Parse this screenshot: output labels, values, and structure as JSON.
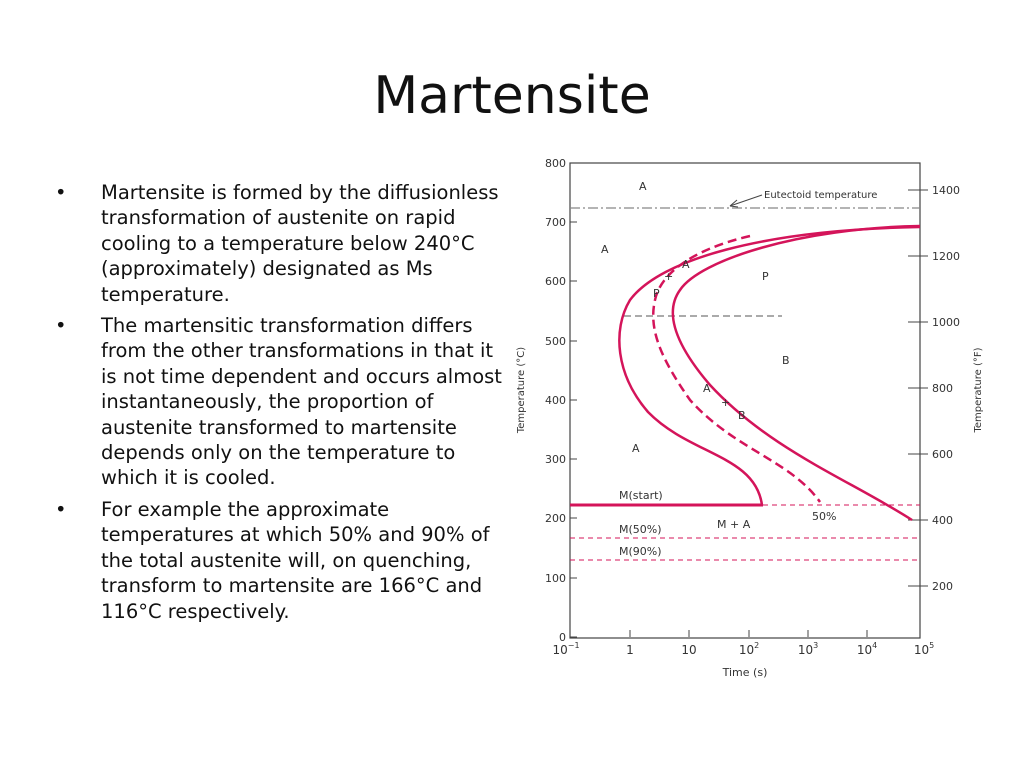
{
  "slide": {
    "title": "Martensite",
    "bullet_symbol": "•",
    "bullets": [
      "Martensite is formed by the diffusionless transformation of austenite on rapid cooling to a temperature below 240°C (approximately) designated as Ms temperature.",
      "The martensitic transformation differs from the other transformations in that it is not time dependent and occurs almost instantaneously, the proportion of austenite transformed to martensite depends only on the temperature to which it is cooled.",
      "For example the approximate temperatures at which 50% and 90% of the total austenite will, on quenching, transform to martensite are 166°C and 116°C respectively."
    ]
  },
  "diagram": {
    "left_axis": {
      "label": "Temperature (°C)",
      "ticks": [
        "0",
        "100",
        "200",
        "300",
        "400",
        "500",
        "600",
        "700",
        "800"
      ]
    },
    "right_axis": {
      "label": "Temperature (°F)",
      "ticks": [
        "200",
        "400",
        "600",
        "800",
        "1000",
        "1200",
        "1400"
      ]
    },
    "x_axis": {
      "label": "Time (s)",
      "ticks": [
        {
          "base": "10",
          "exp": "−1"
        },
        {
          "base": "1",
          "exp": ""
        },
        {
          "base": "10",
          "exp": ""
        },
        {
          "base": "10",
          "exp": "2"
        },
        {
          "base": "10",
          "exp": "3"
        },
        {
          "base": "10",
          "exp": "4"
        },
        {
          "base": "10",
          "exp": "5"
        }
      ]
    },
    "labels": {
      "eutectoid": "Eutectoid temperature",
      "a_top": "A",
      "a_left": "A",
      "a_bottom": "A",
      "a_curve1": "A",
      "plus1": "+",
      "p_curve1": "P",
      "p_region": "P",
      "b_region": "B",
      "a_curve2": "A",
      "plus2": "+",
      "b_curve2": "B",
      "m_start": "M(start)",
      "m_50": "M(50%)",
      "m_90": "M(90%)",
      "m_plus_a": "M + A",
      "pct_50": "50%"
    },
    "colors": {
      "curve": "#d4145a",
      "axis": "#444444",
      "eutectoid_line": "#888888"
    }
  }
}
